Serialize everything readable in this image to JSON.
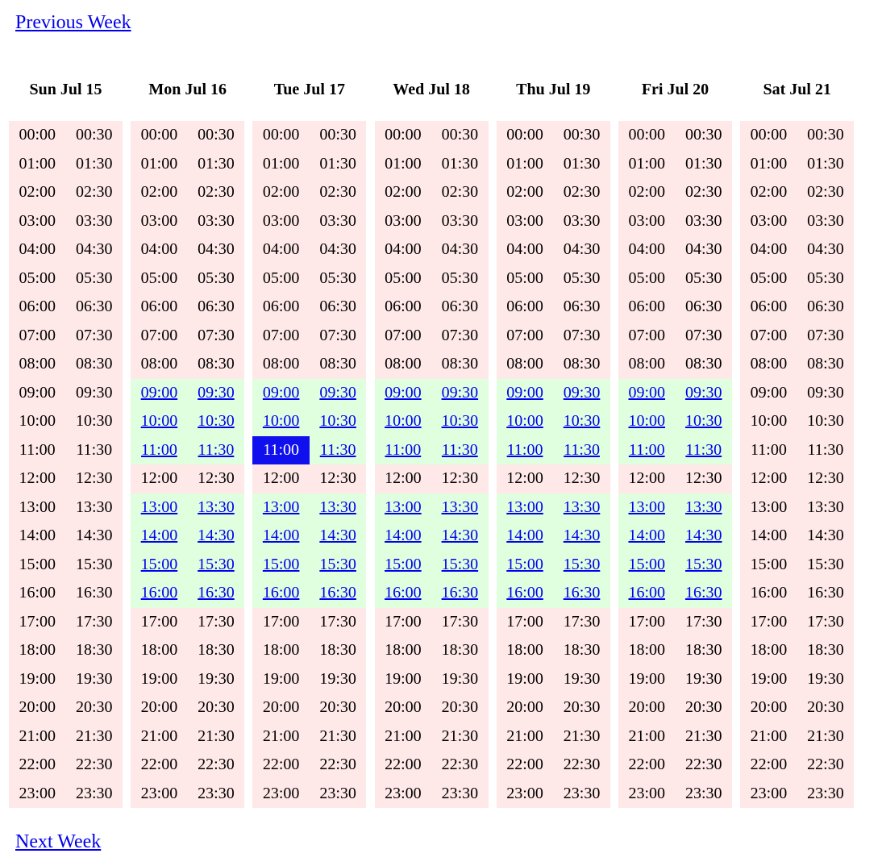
{
  "nav": {
    "previous_label": "Previous Week",
    "next_label": "Next Week"
  },
  "colors": {
    "unavailable": "#ffe8e8",
    "available": "#dfffdf",
    "selected": "#1010ee",
    "link": "#0000ee"
  },
  "days": [
    {
      "label": "Sun Jul 15",
      "available_hours": []
    },
    {
      "label": "Mon Jul 16",
      "available_hours": [
        9,
        10,
        11,
        13,
        14,
        15,
        16
      ]
    },
    {
      "label": "Tue Jul 17",
      "available_hours": [
        9,
        10,
        11,
        13,
        14,
        15,
        16
      ]
    },
    {
      "label": "Wed Jul 18",
      "available_hours": [
        9,
        10,
        11,
        13,
        14,
        15,
        16
      ]
    },
    {
      "label": "Thu Jul 19",
      "available_hours": [
        9,
        10,
        11,
        13,
        14,
        15,
        16
      ]
    },
    {
      "label": "Fri Jul 20",
      "available_hours": [
        9,
        10,
        11,
        13,
        14,
        15,
        16
      ]
    },
    {
      "label": "Sat Jul 21",
      "available_hours": []
    }
  ],
  "slots": [
    "00:00",
    "00:30",
    "01:00",
    "01:30",
    "02:00",
    "02:30",
    "03:00",
    "03:30",
    "04:00",
    "04:30",
    "05:00",
    "05:30",
    "06:00",
    "06:30",
    "07:00",
    "07:30",
    "08:00",
    "08:30",
    "09:00",
    "09:30",
    "10:00",
    "10:30",
    "11:00",
    "11:30",
    "12:00",
    "12:30",
    "13:00",
    "13:30",
    "14:00",
    "14:30",
    "15:00",
    "15:30",
    "16:00",
    "16:30",
    "17:00",
    "17:30",
    "18:00",
    "18:30",
    "19:00",
    "19:30",
    "20:00",
    "20:30",
    "21:00",
    "21:30",
    "22:00",
    "22:30",
    "23:00",
    "23:30"
  ],
  "selected": {
    "day": "Tue Jul 17",
    "slot": "11:00"
  }
}
